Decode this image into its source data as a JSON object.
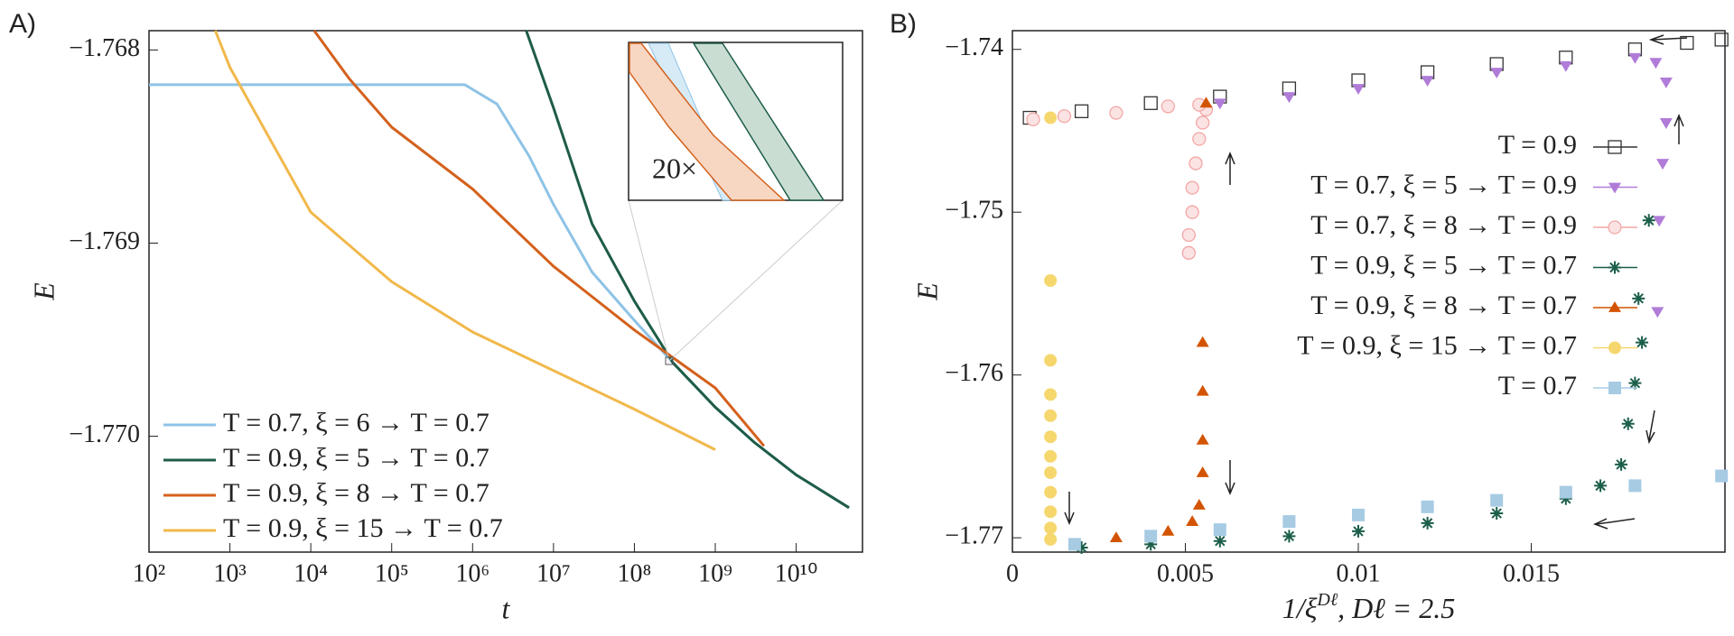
{
  "chart_data": [
    {
      "type": "line",
      "panel_label": "A)",
      "xlabel": "t",
      "ylabel": "E",
      "xscale": "log",
      "inset_label": "20×",
      "xlim": [
        100,
        66000000000
      ],
      "ylim": [
        -1.7706,
        -1.7679
      ],
      "xticks": [
        {
          "value": 100,
          "label": "10²"
        },
        {
          "value": 1000,
          "label": "10³"
        },
        {
          "value": 10000,
          "label": "10⁴"
        },
        {
          "value": 100000,
          "label": "10⁵"
        },
        {
          "value": 1000000,
          "label": "10⁶"
        },
        {
          "value": 10000000,
          "label": "10⁷"
        },
        {
          "value": 100000000,
          "label": "10⁸"
        },
        {
          "value": 1000000000,
          "label": "10⁹"
        },
        {
          "value": 10000000000,
          "label": "10¹⁰"
        }
      ],
      "yticks": [
        {
          "value": -1.768,
          "label": "−1.768"
        },
        {
          "value": -1.769,
          "label": "−1.769"
        },
        {
          "value": -1.77,
          "label": "−1.770"
        }
      ],
      "legend": "lower left",
      "series": [
        {
          "name": "T = 0.7, ξ =   6 → T = 0.7",
          "color": "#8ec3e6",
          "x": [
            100,
            800000,
            2000000,
            5000000,
            10000000,
            30000000,
            100000000,
            300000000,
            1000000000,
            3000000000,
            10000000000,
            45000000000
          ],
          "values": [
            -1.76818,
            -1.76818,
            -1.76828,
            -1.76855,
            -1.7688,
            -1.76915,
            -1.7694,
            -1.76962,
            -1.76985,
            -1.77003,
            -1.7702,
            -1.77037
          ]
        },
        {
          "name": "T = 0.9, ξ =   5 → T = 0.7",
          "color": "#1e5c48",
          "x": [
            4600000,
            10000000,
            30000000,
            100000000,
            300000000,
            1000000000,
            3000000000,
            10000000000,
            45000000000
          ],
          "values": [
            -1.7679,
            -1.7683,
            -1.7689,
            -1.7693,
            -1.76962,
            -1.76985,
            -1.77003,
            -1.7702,
            -1.77037
          ]
        },
        {
          "name": "T = 0.9, ξ =   8 → T = 0.7",
          "color": "#d4611c",
          "x": [
            11000,
            30000,
            100000,
            1000000,
            10000000,
            100000000,
            1000000000,
            4000000000
          ],
          "values": [
            -1.7679,
            -1.76815,
            -1.7684,
            -1.76872,
            -1.76912,
            -1.76945,
            -1.76975,
            -1.77005
          ]
        },
        {
          "name": "T = 0.9, ξ = 15 → T = 0.7",
          "color": "#f1b84a",
          "x": [
            660,
            1000,
            10000,
            100000,
            1000000,
            10000000,
            100000000,
            1000000000
          ],
          "values": [
            -1.7679,
            -1.76809,
            -1.76884,
            -1.7692,
            -1.76946,
            -1.76966,
            -1.76986,
            -1.77007
          ]
        }
      ]
    },
    {
      "type": "scatter",
      "panel_label": "B)",
      "ylabel": "E",
      "xlabel": {
        "base": "1/ξ",
        "sup": "Dℓ",
        "rest": ",    Dℓ = 2.5"
      },
      "xlim": [
        0,
        0.0206
      ],
      "ylim": [
        -1.77088,
        -1.73885
      ],
      "xticks": [
        0,
        0.005,
        0.01,
        0.015
      ],
      "yticks": [
        {
          "value": -1.74,
          "label": "−1.74"
        },
        {
          "value": -1.75,
          "label": "−1.75"
        },
        {
          "value": -1.76,
          "label": "−1.76"
        },
        {
          "value": -1.77,
          "label": "−1.77"
        }
      ],
      "legend": "upper right",
      "series": [
        {
          "name": "T = 0.9",
          "color": "#333333",
          "marker": "square-open",
          "x": [
            0.0005,
            0.002,
            0.004,
            0.006,
            0.008,
            0.01,
            0.012,
            0.014,
            0.016,
            0.018,
            0.0195,
            0.0205
          ],
          "values": [
            -1.7442,
            -1.7438,
            -1.7433,
            -1.7429,
            -1.7424,
            -1.7419,
            -1.7414,
            -1.7409,
            -1.7405,
            -1.74,
            -1.7396,
            -1.7394
          ]
        },
        {
          "name": "T = 0.7, ξ =  5 → T = 0.9",
          "color": "#b07cd8",
          "marker": "triangle-down",
          "x": [
            0.01865,
            0.0187,
            0.0188,
            0.0189,
            0.0189,
            0.0186,
            0.018,
            0.016,
            0.014,
            0.012,
            0.01,
            0.008,
            0.006
          ],
          "values": [
            -1.7561,
            -1.7505,
            -1.747,
            -1.7445,
            -1.742,
            -1.7408,
            -1.7405,
            -1.741,
            -1.7414,
            -1.7419,
            -1.7424,
            -1.7429,
            -1.7433
          ]
        },
        {
          "name": "T = 0.7, ξ =  8 → T = 0.9",
          "color": "#f4a6a6",
          "marker": "circle-open",
          "x": [
            0.0051,
            0.0051,
            0.0052,
            0.0052,
            0.0053,
            0.0054,
            0.0055,
            0.0056,
            0.0054,
            0.0045,
            0.003,
            0.0015,
            0.0006
          ],
          "values": [
            -1.7525,
            -1.7514,
            -1.75,
            -1.7485,
            -1.747,
            -1.7455,
            -1.7445,
            -1.7437,
            -1.7434,
            -1.7435,
            -1.7439,
            -1.7441,
            -1.7443
          ]
        },
        {
          "name": "T = 0.9, ξ =  5 → T = 0.7",
          "color": "#1b5e4a",
          "marker": "star",
          "x": [
            0.0184,
            0.0181,
            0.0182,
            0.018,
            0.0178,
            0.0176,
            0.017,
            0.016,
            0.014,
            0.012,
            0.01,
            0.008,
            0.006,
            0.004,
            0.002
          ],
          "values": [
            -1.7505,
            -1.7553,
            -1.758,
            -1.7605,
            -1.763,
            -1.7655,
            -1.7668,
            -1.7676,
            -1.7685,
            -1.7691,
            -1.7696,
            -1.7699,
            -1.7702,
            -1.7704,
            -1.7706
          ]
        },
        {
          "name": "T = 0.9, ξ =  8 → T = 0.7",
          "color": "#d35400",
          "marker": "triangle-up",
          "x": [
            0.0056,
            0.0055,
            0.0055,
            0.0055,
            0.0055,
            0.0054,
            0.0052,
            0.0045,
            0.003
          ],
          "values": [
            -1.7433,
            -1.758,
            -1.761,
            -1.764,
            -1.766,
            -1.768,
            -1.769,
            -1.7696,
            -1.77
          ]
        },
        {
          "name": "T = 0.9, ξ = 15 → T = 0.7",
          "color": "#f5d76e",
          "marker": "circle",
          "x": [
            0.0011,
            0.0011,
            0.0011,
            0.0011,
            0.0011,
            0.0011,
            0.0011,
            0.0011,
            0.0011,
            0.0011,
            0.0011,
            0.0011
          ],
          "values": [
            -1.7442,
            -1.7542,
            -1.7591,
            -1.7612,
            -1.7625,
            -1.7638,
            -1.765,
            -1.766,
            -1.7672,
            -1.7684,
            -1.7694,
            -1.7701
          ]
        },
        {
          "name": "T = 0.7",
          "color": "#a6cbe3",
          "marker": "square",
          "x": [
            0.0018,
            0.004,
            0.006,
            0.008,
            0.01,
            0.012,
            0.014,
            0.016,
            0.018,
            0.0205
          ],
          "values": [
            -1.7704,
            -1.7699,
            -1.7695,
            -1.769,
            -1.7686,
            -1.7681,
            -1.7677,
            -1.7672,
            -1.7668,
            -1.7662
          ]
        }
      ]
    }
  ]
}
